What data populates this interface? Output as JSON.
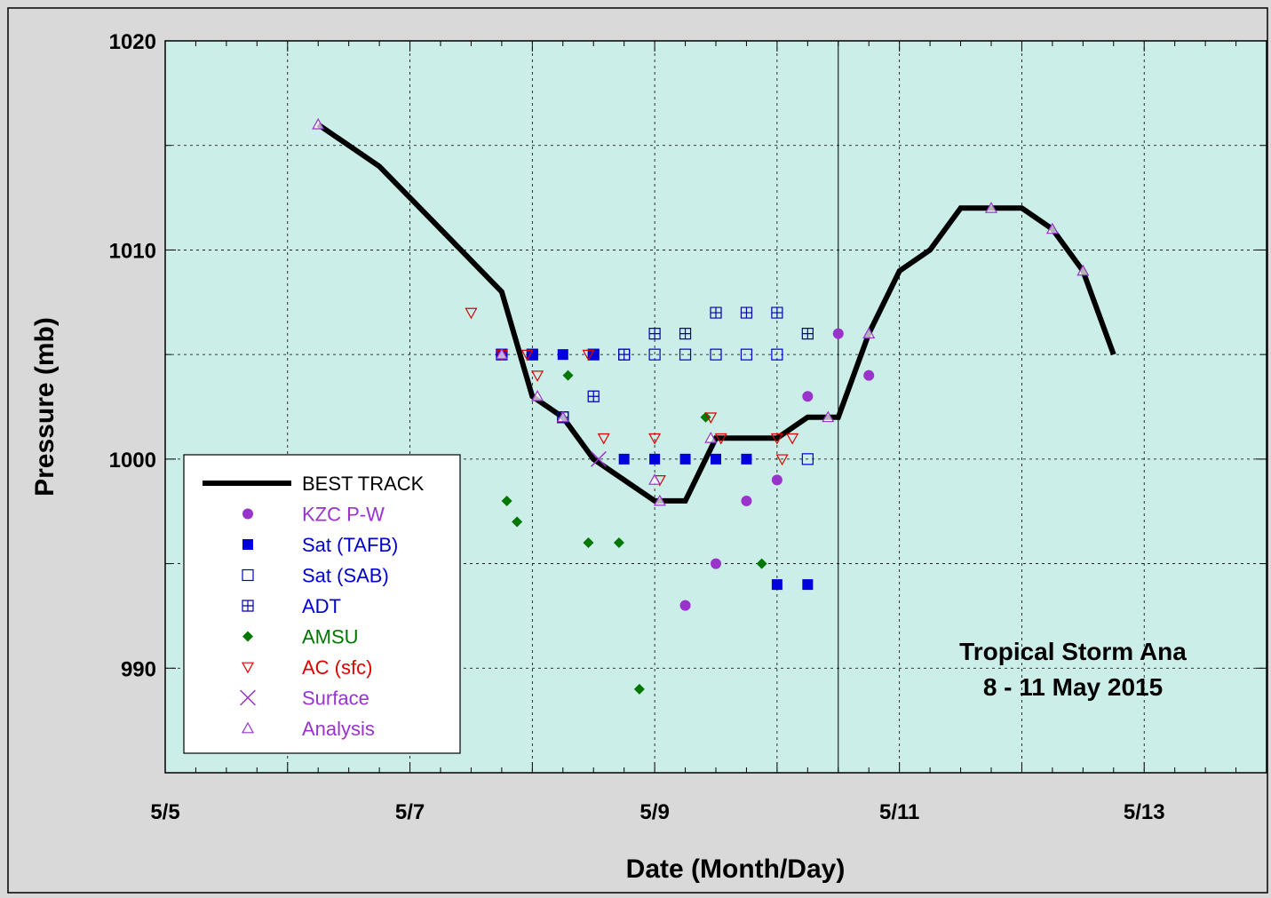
{
  "chart_data": {
    "type": "scatter",
    "title": "",
    "xlabel": "Date (Month/Day)",
    "ylabel": "Pressure (mb)",
    "xlim": [
      "5/5 00:00",
      "5/14 00:00"
    ],
    "ylim": [
      985,
      1020
    ],
    "x_ticks": [
      "5/5",
      "5/7",
      "5/9",
      "5/11",
      "5/13"
    ],
    "y_ticks": [
      "990",
      "1000",
      "1010",
      "1020"
    ],
    "grid": true,
    "legend_position": "bottom-left",
    "vertical_marker": "5/10 12:00",
    "annotation": [
      "Tropical Storm Ana",
      "8 - 11 May 2015"
    ],
    "colors": {
      "background": "#d9d9d9",
      "plot_area": "#cceee8",
      "best_track": "#000000",
      "kzc": "#9933cc",
      "sat_tafb": "#0000dd",
      "sat_sab": "#0000cc",
      "adt": "#0000aa",
      "amsu": "#007700",
      "ac_sfc": "#dd0000",
      "surface": "#9933cc",
      "analysis": "#9933cc"
    },
    "series": [
      {
        "name": "BEST TRACK",
        "marker": "line",
        "color": "#000000",
        "legend_color": "#000000",
        "points": [
          [
            "5/6 06:00",
            1016
          ],
          [
            "5/6 18:00",
            1014
          ],
          [
            "5/7 06:00",
            1011
          ],
          [
            "5/7 18:00",
            1008
          ],
          [
            "5/7 12:00",
            null
          ],
          [
            "5/8 00:00",
            1003
          ],
          [
            "5/8 06:00",
            1002
          ],
          [
            "5/8 12:00",
            1000
          ],
          [
            "5/9 00:00",
            998
          ],
          [
            "5/9 06:00",
            998
          ],
          [
            "5/9 12:00",
            1001
          ],
          [
            "5/9 18:00",
            1001
          ],
          [
            "5/10 00:00",
            1001
          ],
          [
            "5/10 06:00",
            1002
          ],
          [
            "5/10 12:00",
            1002
          ],
          [
            "5/10 18:00",
            1006
          ],
          [
            "5/11 00:00",
            1009
          ],
          [
            "5/11 06:00",
            1010
          ],
          [
            "5/11 12:00",
            1012
          ],
          [
            "5/11 18:00",
            1012
          ],
          [
            "5/12 00:00",
            1012
          ],
          [
            "5/12 06:00",
            1011
          ],
          [
            "5/12 12:00",
            1009
          ],
          [
            "5/12 18:00",
            1005
          ]
        ]
      },
      {
        "name": "KZC P-W",
        "marker": "circle",
        "color": "#9933cc",
        "legend_color": "#9933cc",
        "points": [
          [
            "5/9 06:00",
            993
          ],
          [
            "5/9 12:00",
            995
          ],
          [
            "5/9 18:00",
            998
          ],
          [
            "5/10 00:00",
            999
          ],
          [
            "5/10 06:00",
            1003
          ],
          [
            "5/10 12:00",
            1006
          ],
          [
            "5/10 18:00",
            1004
          ]
        ]
      },
      {
        "name": "Sat (TAFB)",
        "marker": "square-filled",
        "color": "#0000dd",
        "legend_color": "#0000cc",
        "points": [
          [
            "5/7 18:00",
            1005
          ],
          [
            "5/8 00:00",
            1005
          ],
          [
            "5/8 06:00",
            1005
          ],
          [
            "5/8 12:00",
            1005
          ],
          [
            "5/8 18:00",
            1000
          ],
          [
            "5/9 00:00",
            1000
          ],
          [
            "5/9 06:00",
            1000
          ],
          [
            "5/9 12:00",
            1000
          ],
          [
            "5/9 18:00",
            1000
          ],
          [
            "5/10 00:00",
            994
          ],
          [
            "5/10 06:00",
            994
          ]
        ]
      },
      {
        "name": "Sat (SAB)",
        "marker": "square-open",
        "color": "#0000cc",
        "legend_color": "#0000cc",
        "points": [
          [
            "5/7 18:00",
            1005
          ],
          [
            "5/8 00:00",
            1005
          ],
          [
            "5/8 06:00",
            1002
          ],
          [
            "5/8 12:00",
            1005
          ],
          [
            "5/8 18:00",
            1005
          ],
          [
            "5/9 00:00",
            1005
          ],
          [
            "5/9 06:00",
            1005
          ],
          [
            "5/9 12:00",
            1005
          ],
          [
            "5/9 18:00",
            1005
          ],
          [
            "5/10 00:00",
            1005
          ],
          [
            "5/10 06:00",
            1000
          ]
        ]
      },
      {
        "name": "ADT",
        "marker": "square-cross",
        "color": "#0000aa",
        "legend_color": "#0000cc",
        "points": [
          [
            "5/8 06:00",
            1002
          ],
          [
            "5/8 12:00",
            1003
          ],
          [
            "5/8 18:00",
            1005
          ],
          [
            "5/9 00:00",
            1006
          ],
          [
            "5/9 06:00",
            1006
          ],
          [
            "5/9 12:00",
            1007
          ],
          [
            "5/9 18:00",
            1007
          ],
          [
            "5/10 00:00",
            1007
          ],
          [
            "5/10 06:00",
            1006
          ]
        ]
      },
      {
        "name": "AMSU",
        "marker": "diamond",
        "color": "#007700",
        "legend_color": "#007700",
        "points": [
          [
            "5/7 19:00",
            998
          ],
          [
            "5/7 21:00",
            997
          ],
          [
            "5/8 07:00",
            1004
          ],
          [
            "5/8 11:00",
            996
          ],
          [
            "5/8 17:00",
            996
          ],
          [
            "5/8 21:00",
            989
          ],
          [
            "5/9 10:00",
            1002
          ],
          [
            "5/9 21:00",
            995
          ]
        ]
      },
      {
        "name": "AC (sfc)",
        "marker": "triangle-down",
        "color": "#dd0000",
        "legend_color": "#dd0000",
        "points": [
          [
            "5/7 12:00",
            1007
          ],
          [
            "5/7 18:00",
            1005
          ],
          [
            "5/7 23:00",
            1005
          ],
          [
            "5/8 01:00",
            1004
          ],
          [
            "5/8 11:00",
            1005
          ],
          [
            "5/8 14:00",
            1001
          ],
          [
            "5/9 00:00",
            1001
          ],
          [
            "5/9 01:00",
            999
          ],
          [
            "5/9 11:00",
            1002
          ],
          [
            "5/9 13:00",
            1001
          ],
          [
            "5/10 00:00",
            1001
          ],
          [
            "5/10 01:00",
            1000
          ],
          [
            "5/10 03:00",
            1001
          ]
        ]
      },
      {
        "name": "Surface",
        "marker": "x",
        "color": "#9933cc",
        "legend_color": "#9933cc",
        "points": [
          [
            "5/8 13:00",
            1000
          ]
        ]
      },
      {
        "name": "Analysis",
        "marker": "triangle-up",
        "color": "#9933cc",
        "legend_color": "#9933cc",
        "points": [
          [
            "5/6 06:00",
            1016
          ],
          [
            "5/7 18:00",
            1005
          ],
          [
            "5/8 01:00",
            1003
          ],
          [
            "5/8 06:00",
            1002
          ],
          [
            "5/9 00:00",
            999
          ],
          [
            "5/9 01:00",
            998
          ],
          [
            "5/9 11:00",
            1001
          ],
          [
            "5/10 10:00",
            1002
          ],
          [
            "5/10 18:00",
            1006
          ],
          [
            "5/11 18:00",
            1012
          ],
          [
            "5/12 06:00",
            1011
          ],
          [
            "5/12 12:00",
            1009
          ]
        ]
      }
    ]
  }
}
